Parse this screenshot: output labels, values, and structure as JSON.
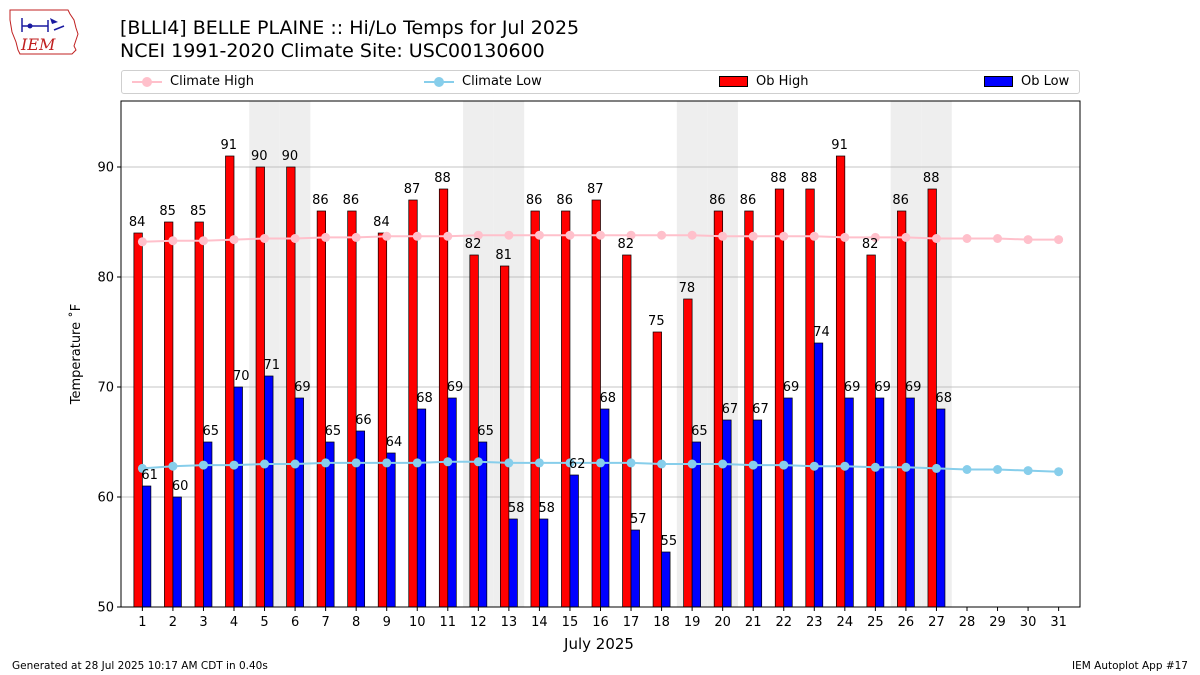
{
  "header": {
    "title_line1": "[BLLI4] BELLE PLAINE :: Hi/Lo Temps for Jul 2025",
    "title_line2": "NCEI 1991-2020 Climate Site: USC00130600"
  },
  "logo": {
    "text": "IEM"
  },
  "footer": {
    "generated": "Generated at 28 Jul 2025 10:17 AM CDT in 0.40s",
    "app": "IEM Autoplot App #17"
  },
  "colors": {
    "ob_high": "#ff0000",
    "ob_low": "#0000ff",
    "climate_high": "#ffc0cb",
    "climate_low": "#87ceeb",
    "weekend_band": "#eeeeee"
  },
  "chart_data": {
    "type": "bar",
    "xlabel": "July 2025",
    "ylabel": "Temperature ˚F",
    "ylim": [
      50,
      96
    ],
    "yticks": [
      50,
      60,
      70,
      80,
      90
    ],
    "grid": "horizontal",
    "legend_position": "top",
    "legend": [
      "Climate High",
      "Climate Low",
      "Ob High",
      "Ob Low"
    ],
    "days": [
      1,
      2,
      3,
      4,
      5,
      6,
      7,
      8,
      9,
      10,
      11,
      12,
      13,
      14,
      15,
      16,
      17,
      18,
      19,
      20,
      21,
      22,
      23,
      24,
      25,
      26,
      27,
      28,
      29,
      30,
      31
    ],
    "shaded_days": [
      5,
      6,
      12,
      13,
      19,
      20,
      26,
      27
    ],
    "series": [
      {
        "name": "Ob High",
        "type": "bar",
        "values": [
          84,
          85,
          85,
          91,
          90,
          90,
          86,
          86,
          84,
          87,
          88,
          82,
          81,
          86,
          86,
          87,
          82,
          75,
          78,
          86,
          86,
          88,
          88,
          91,
          82,
          86,
          88
        ]
      },
      {
        "name": "Ob Low",
        "type": "bar",
        "values": [
          61,
          60,
          65,
          70,
          71,
          69,
          65,
          66,
          64,
          68,
          69,
          65,
          58,
          58,
          62,
          68,
          57,
          55,
          65,
          67,
          67,
          69,
          74,
          69,
          69,
          69,
          68
        ]
      },
      {
        "name": "Climate High",
        "type": "line",
        "values": [
          83.2,
          83.3,
          83.3,
          83.4,
          83.5,
          83.5,
          83.6,
          83.6,
          83.7,
          83.7,
          83.7,
          83.8,
          83.8,
          83.8,
          83.8,
          83.8,
          83.8,
          83.8,
          83.8,
          83.7,
          83.7,
          83.7,
          83.7,
          83.6,
          83.6,
          83.6,
          83.5,
          83.5,
          83.5,
          83.4,
          83.4
        ]
      },
      {
        "name": "Climate Low",
        "type": "line",
        "values": [
          62.6,
          62.8,
          62.9,
          62.9,
          63.0,
          63.0,
          63.1,
          63.1,
          63.1,
          63.1,
          63.2,
          63.2,
          63.1,
          63.1,
          63.1,
          63.1,
          63.1,
          63.0,
          63.0,
          63.0,
          62.9,
          62.9,
          62.8,
          62.8,
          62.7,
          62.7,
          62.6,
          62.5,
          62.5,
          62.4,
          62.3
        ]
      }
    ]
  }
}
